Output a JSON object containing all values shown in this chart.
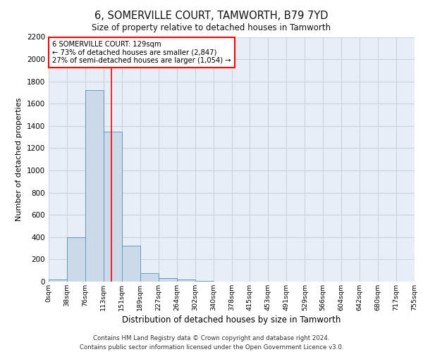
{
  "title1": "6, SOMERVILLE COURT, TAMWORTH, B79 7YD",
  "title2": "Size of property relative to detached houses in Tamworth",
  "xlabel": "Distribution of detached houses by size in Tamworth",
  "ylabel": "Number of detached properties",
  "bar_values": [
    20,
    400,
    1725,
    1350,
    325,
    75,
    30,
    20,
    5,
    2,
    1,
    0,
    0,
    0,
    0,
    0,
    0,
    0
  ],
  "bin_labels": [
    "0sqm",
    "38sqm",
    "76sqm",
    "113sqm",
    "151sqm",
    "189sqm",
    "227sqm",
    "264sqm",
    "302sqm",
    "340sqm",
    "378sqm",
    "415sqm",
    "453sqm",
    "491sqm",
    "529sqm",
    "566sqm",
    "604sqm",
    "642sqm",
    "680sqm",
    "717sqm",
    "755sqm"
  ],
  "bar_color": "#ccd9e8",
  "bar_edge_color": "#6699bb",
  "grid_color": "#c8d4e0",
  "background_color": "#e8eef5",
  "annotation_text_line1": "6 SOMERVILLE COURT: 129sqm",
  "annotation_text_line2": "← 73% of detached houses are smaller (2,847)",
  "annotation_text_line3": "27% of semi-detached houses are larger (1,054) →",
  "ylim": [
    0,
    2200
  ],
  "yticks": [
    0,
    200,
    400,
    600,
    800,
    1000,
    1200,
    1400,
    1600,
    1800,
    2000,
    2200
  ],
  "footnote1": "Contains HM Land Registry data © Crown copyright and database right 2024.",
  "footnote2": "Contains public sector information licensed under the Open Government Licence v3.0."
}
